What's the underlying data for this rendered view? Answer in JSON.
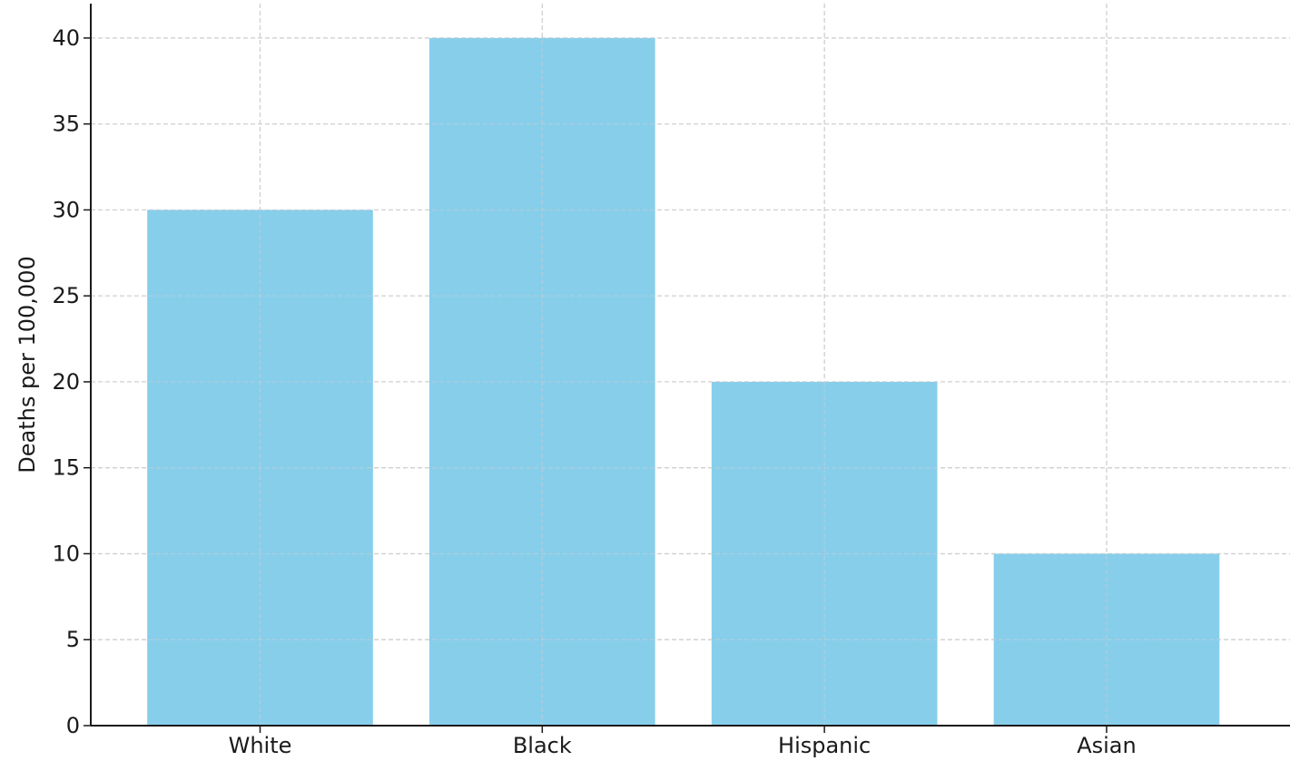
{
  "chart_data": {
    "type": "bar",
    "title": "",
    "xlabel": "",
    "ylabel": "Deaths per 100,000",
    "categories": [
      "White",
      "Black",
      "Hispanic",
      "Asian"
    ],
    "values": [
      30,
      40,
      20,
      10
    ],
    "ylim": [
      0,
      42
    ],
    "yticks": [
      0,
      5,
      10,
      15,
      20,
      25,
      30,
      35,
      40
    ],
    "grid": true,
    "bar_color": "#87CEEB"
  }
}
